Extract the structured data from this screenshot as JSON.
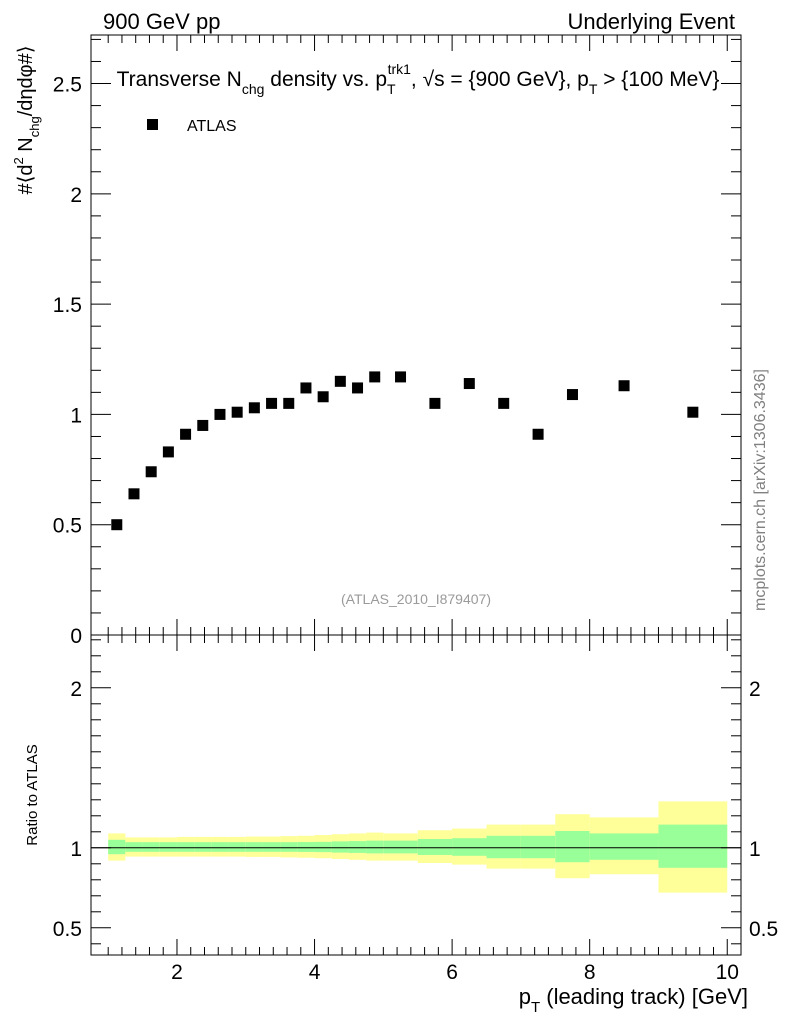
{
  "header": {
    "left": "900 GeV pp",
    "right": "Underlying Event"
  },
  "title": {
    "part1": "Transverse N",
    "sub1": "chg",
    "part2": " density vs. p",
    "sub2": "T",
    "sup2": "trk1",
    "part3": ", √s = {900 GeV}, p",
    "sub3": "T",
    "part4": " > {100 MeV}"
  },
  "legend": {
    "label": "ATLAS"
  },
  "watermark": "(ATLAS_2010_I879407)",
  "side_label": "mcplots.cern.ch [arXiv:1306.3436]",
  "ylabel_main": {
    "a": "#⟨d",
    "sup": "2",
    "b": " N",
    "sub": "chg",
    "c": "/dηdφ#⟩"
  },
  "ylabel_ratio": "Ratio to ATLAS",
  "xlabel": {
    "a": "p",
    "sub": "T",
    "b": " (leading track) [GeV]"
  },
  "colors": {
    "marker": "#000000",
    "band_inner": "#99ff99",
    "band_outer": "#ffff99",
    "line": "#000000"
  },
  "chart_data": [
    {
      "type": "scatter",
      "name": "main",
      "xlim": [
        0.75,
        10.2
      ],
      "ylim": [
        0,
        2.72
      ],
      "y_tick_labels": [
        "0",
        "0.5",
        "1",
        "1.5",
        "2",
        "2.5"
      ],
      "y_tick_values": [
        0,
        0.5,
        1,
        1.5,
        2,
        2.5
      ],
      "series": [
        {
          "name": "ATLAS",
          "x": [
            1.125,
            1.375,
            1.625,
            1.875,
            2.125,
            2.375,
            2.625,
            2.875,
            3.125,
            3.375,
            3.625,
            3.875,
            4.125,
            4.375,
            4.625,
            4.875,
            5.25,
            5.75,
            6.25,
            6.75,
            7.25,
            7.75,
            8.5,
            9.5
          ],
          "y": [
            0.5,
            0.64,
            0.74,
            0.83,
            0.91,
            0.95,
            1.0,
            1.01,
            1.03,
            1.05,
            1.05,
            1.12,
            1.08,
            1.15,
            1.12,
            1.17,
            1.17,
            1.05,
            1.14,
            1.05,
            0.91,
            1.09,
            1.13,
            1.01
          ]
        }
      ]
    },
    {
      "type": "area",
      "name": "ratio",
      "xlim": [
        0.75,
        10.2
      ],
      "ylim": [
        0.33,
        2.33
      ],
      "y_tick_labels": [
        "0.5",
        "1",
        "2"
      ],
      "y_tick_values": [
        0.5,
        1,
        2
      ],
      "x_tick_labels": [
        "2",
        "4",
        "6",
        "8",
        "10"
      ],
      "x_tick_values": [
        2,
        4,
        6,
        8,
        10
      ],
      "reference": 1,
      "bins": [
        {
          "lo": 1.0,
          "hi": 1.25,
          "inner": [
            0.96,
            1.05
          ],
          "outer": [
            0.92,
            1.09
          ]
        },
        {
          "lo": 1.25,
          "hi": 1.5,
          "inner": [
            0.975,
            1.035
          ],
          "outer": [
            0.945,
            1.065
          ]
        },
        {
          "lo": 1.5,
          "hi": 1.75,
          "inner": [
            0.975,
            1.035
          ],
          "outer": [
            0.945,
            1.065
          ]
        },
        {
          "lo": 1.75,
          "hi": 2.0,
          "inner": [
            0.975,
            1.035
          ],
          "outer": [
            0.945,
            1.065
          ]
        },
        {
          "lo": 2.0,
          "hi": 2.25,
          "inner": [
            0.975,
            1.035
          ],
          "outer": [
            0.945,
            1.068
          ]
        },
        {
          "lo": 2.25,
          "hi": 2.5,
          "inner": [
            0.975,
            1.035
          ],
          "outer": [
            0.945,
            1.068
          ]
        },
        {
          "lo": 2.5,
          "hi": 2.75,
          "inner": [
            0.975,
            1.035
          ],
          "outer": [
            0.945,
            1.068
          ]
        },
        {
          "lo": 2.75,
          "hi": 3.0,
          "inner": [
            0.975,
            1.035
          ],
          "outer": [
            0.945,
            1.068
          ]
        },
        {
          "lo": 3.0,
          "hi": 3.25,
          "inner": [
            0.975,
            1.035
          ],
          "outer": [
            0.943,
            1.07
          ]
        },
        {
          "lo": 3.25,
          "hi": 3.5,
          "inner": [
            0.975,
            1.035
          ],
          "outer": [
            0.943,
            1.07
          ]
        },
        {
          "lo": 3.5,
          "hi": 3.75,
          "inner": [
            0.975,
            1.035
          ],
          "outer": [
            0.94,
            1.073
          ]
        },
        {
          "lo": 3.75,
          "hi": 4.0,
          "inner": [
            0.974,
            1.036
          ],
          "outer": [
            0.938,
            1.075
          ]
        },
        {
          "lo": 4.0,
          "hi": 4.25,
          "inner": [
            0.973,
            1.037
          ],
          "outer": [
            0.935,
            1.08
          ]
        },
        {
          "lo": 4.25,
          "hi": 4.5,
          "inner": [
            0.97,
            1.04
          ],
          "outer": [
            0.93,
            1.085
          ]
        },
        {
          "lo": 4.5,
          "hi": 4.75,
          "inner": [
            0.968,
            1.042
          ],
          "outer": [
            0.925,
            1.09
          ]
        },
        {
          "lo": 4.75,
          "hi": 5.0,
          "inner": [
            0.965,
            1.045
          ],
          "outer": [
            0.92,
            1.095
          ]
        },
        {
          "lo": 5.0,
          "hi": 5.5,
          "inner": [
            0.965,
            1.045
          ],
          "outer": [
            0.92,
            1.09
          ]
        },
        {
          "lo": 5.5,
          "hi": 6.0,
          "inner": [
            0.955,
            1.055
          ],
          "outer": [
            0.905,
            1.11
          ]
        },
        {
          "lo": 6.0,
          "hi": 6.5,
          "inner": [
            0.95,
            1.06
          ],
          "outer": [
            0.895,
            1.12
          ]
        },
        {
          "lo": 6.5,
          "hi": 7.0,
          "inner": [
            0.935,
            1.075
          ],
          "outer": [
            0.87,
            1.145
          ]
        },
        {
          "lo": 7.0,
          "hi": 7.5,
          "inner": [
            0.935,
            1.075
          ],
          "outer": [
            0.87,
            1.145
          ]
        },
        {
          "lo": 7.5,
          "hi": 8.0,
          "inner": [
            0.91,
            1.105
          ],
          "outer": [
            0.81,
            1.21
          ]
        },
        {
          "lo": 8.0,
          "hi": 9.0,
          "inner": [
            0.925,
            1.09
          ],
          "outer": [
            0.835,
            1.19
          ]
        },
        {
          "lo": 9.0,
          "hi": 10.0,
          "inner": [
            0.875,
            1.145
          ],
          "outer": [
            0.72,
            1.29
          ]
        }
      ]
    }
  ]
}
